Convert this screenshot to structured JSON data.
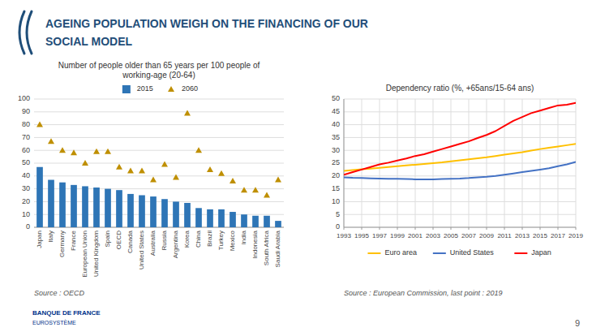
{
  "title": "AGEING POPULATION WEIGH ON THE FINANCING OF OUR\nSOCIAL MODEL",
  "annotations": [
    "9",
    "BANQUE DE FRANCE",
    "EUROSYSTÈME"
  ],
  "chart_data": [
    {
      "type": "bar",
      "title": "Number of people older than 65 years per 100 people of\nworking-age (20-64)",
      "categories": [
        "Japan",
        "Italy",
        "Germany",
        "France",
        "European Union",
        "United Kingdom",
        "Spain",
        "OECD",
        "Canada",
        "United States",
        "Australia",
        "Russia",
        "Argentina",
        "Korea",
        "China",
        "Brazil",
        "Turkey",
        "Mexico",
        "India",
        "Indonesia",
        "South Africa",
        "Saudi Arabia"
      ],
      "series": [
        {
          "name": "2015",
          "type": "bar",
          "color": "#2e75b6",
          "values": [
            47,
            37,
            35,
            33,
            32,
            31,
            30,
            29,
            26,
            25,
            24,
            22,
            20,
            19,
            15,
            14,
            14,
            12,
            10,
            9,
            9,
            5
          ]
        },
        {
          "name": "2060",
          "type": "scatter",
          "marker": "triangle",
          "color": "#bf8f00",
          "values": [
            80,
            67,
            60,
            58,
            50,
            59,
            59,
            47,
            44,
            44,
            37,
            49,
            39,
            89,
            60,
            45,
            42,
            36,
            29,
            29,
            25,
            37
          ]
        }
      ],
      "ylim": [
        0,
        100
      ],
      "yticks": [
        0,
        10,
        20,
        30,
        40,
        50,
        60,
        70,
        80,
        90,
        100
      ],
      "grid": true,
      "legend": "top",
      "annotations": [
        "Source : OECD"
      ]
    },
    {
      "type": "line",
      "title": "Dependency ratio (%, +65ans/15-64 ans)",
      "x": [
        1993,
        1994,
        1995,
        1996,
        1997,
        1998,
        1999,
        2000,
        2001,
        2002,
        2003,
        2004,
        2005,
        2006,
        2007,
        2008,
        2009,
        2010,
        2011,
        2012,
        2013,
        2014,
        2015,
        2016,
        2017,
        2018,
        2019
      ],
      "series": [
        {
          "name": "Euro area",
          "color": "#ffc000",
          "values": [
            22.0,
            22.3,
            22.6,
            22.9,
            23.2,
            23.5,
            23.8,
            24.1,
            24.4,
            24.7,
            25.0,
            25.3,
            25.7,
            26.1,
            26.5,
            26.9,
            27.3,
            27.8,
            28.3,
            28.8,
            29.3,
            29.9,
            30.5,
            31.0,
            31.5,
            32.0,
            32.5
          ]
        },
        {
          "name": "United States",
          "color": "#4472c4",
          "values": [
            19.5,
            19.3,
            19.2,
            19.1,
            19.0,
            18.9,
            18.9,
            18.8,
            18.7,
            18.7,
            18.7,
            18.8,
            18.9,
            19.0,
            19.2,
            19.5,
            19.7,
            20.0,
            20.5,
            21.0,
            21.5,
            22.0,
            22.5,
            23.0,
            23.8,
            24.5,
            25.5
          ]
        },
        {
          "name": "Japan",
          "color": "#ff0000",
          "values": [
            20.5,
            21.5,
            22.5,
            23.5,
            24.5,
            25.2,
            26.0,
            26.8,
            27.8,
            28.5,
            29.5,
            30.5,
            31.5,
            32.5,
            33.5,
            34.8,
            36.0,
            37.5,
            39.5,
            41.5,
            43.0,
            44.5,
            45.5,
            46.5,
            47.5,
            47.8,
            48.5
          ]
        }
      ],
      "xlim": [
        1993,
        2019
      ],
      "xticks": [
        1993,
        1995,
        1997,
        1999,
        2001,
        2003,
        2005,
        2007,
        2009,
        2011,
        2013,
        2015,
        2017,
        2019
      ],
      "ylim": [
        0,
        50
      ],
      "yticks": [
        0,
        5,
        10,
        15,
        20,
        25,
        30,
        35,
        40,
        45,
        50
      ],
      "grid": true,
      "legend": "bottom",
      "annotations": [
        "Source : European Commission, last point : 2019"
      ]
    }
  ]
}
